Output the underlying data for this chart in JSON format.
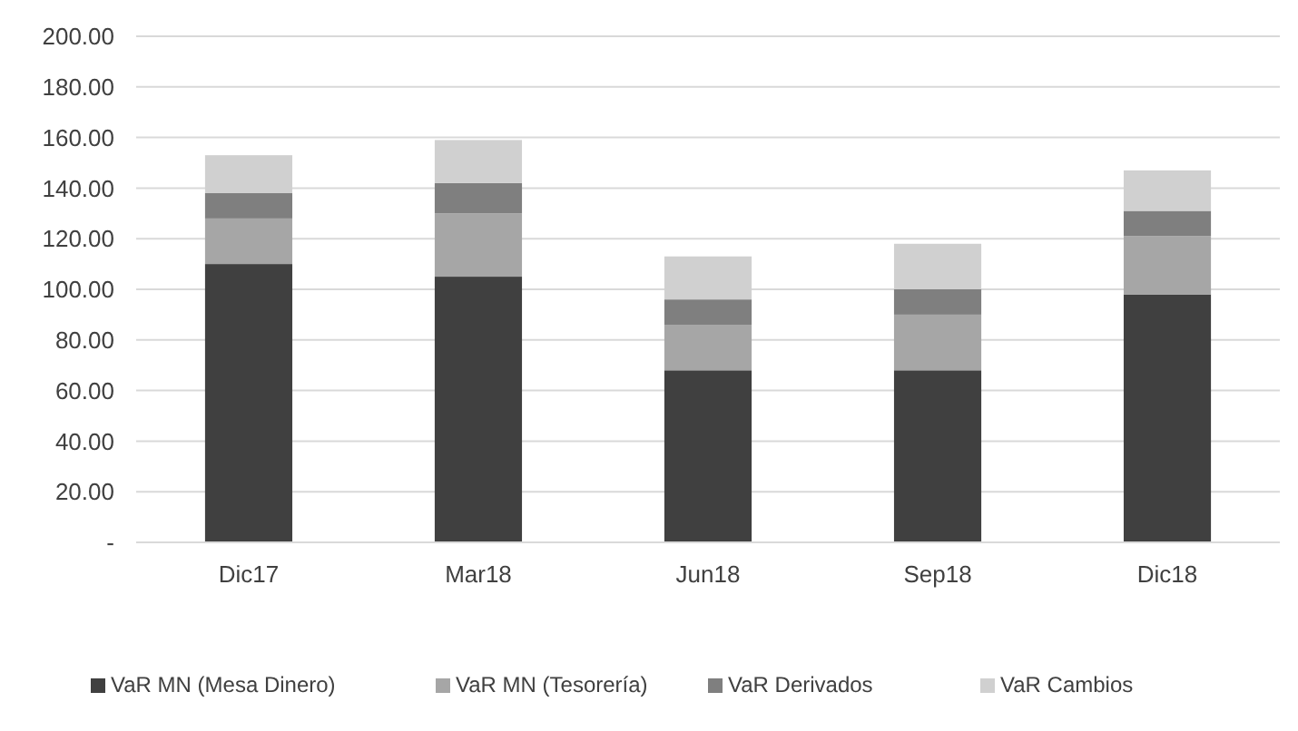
{
  "chart_data": {
    "type": "bar",
    "stacked": true,
    "categories": [
      "Dic17",
      "Mar18",
      "Jun18",
      "Sep18",
      "Dic18"
    ],
    "series": [
      {
        "name": "VaR MN (Mesa Dinero)",
        "color": "#404040",
        "values": [
          110,
          105,
          68,
          68,
          98
        ]
      },
      {
        "name": "VaR MN (Tesorería)",
        "color": "#a6a6a6",
        "values": [
          18,
          25,
          18,
          22,
          23
        ]
      },
      {
        "name": "VaR Derivados",
        "color": "#7f7f7f",
        "values": [
          10,
          12,
          10,
          10,
          10
        ]
      },
      {
        "name": "VaR Cambios",
        "color": "#d0d0d0",
        "values": [
          15,
          17,
          17,
          18,
          16
        ]
      }
    ],
    "ylim": [
      0,
      200
    ],
    "yticks": [
      {
        "value": 0,
        "label": "-"
      },
      {
        "value": 20,
        "label": "20.00"
      },
      {
        "value": 40,
        "label": "40.00"
      },
      {
        "value": 60,
        "label": "60.00"
      },
      {
        "value": 80,
        "label": "80.00"
      },
      {
        "value": 100,
        "label": "100.00"
      },
      {
        "value": 120,
        "label": "120.00"
      },
      {
        "value": 140,
        "label": "140.00"
      },
      {
        "value": 160,
        "label": "160.00"
      },
      {
        "value": 180,
        "label": "180.00"
      },
      {
        "value": 200,
        "label": "200.00"
      }
    ],
    "grid": "y",
    "legend": "bottom"
  }
}
